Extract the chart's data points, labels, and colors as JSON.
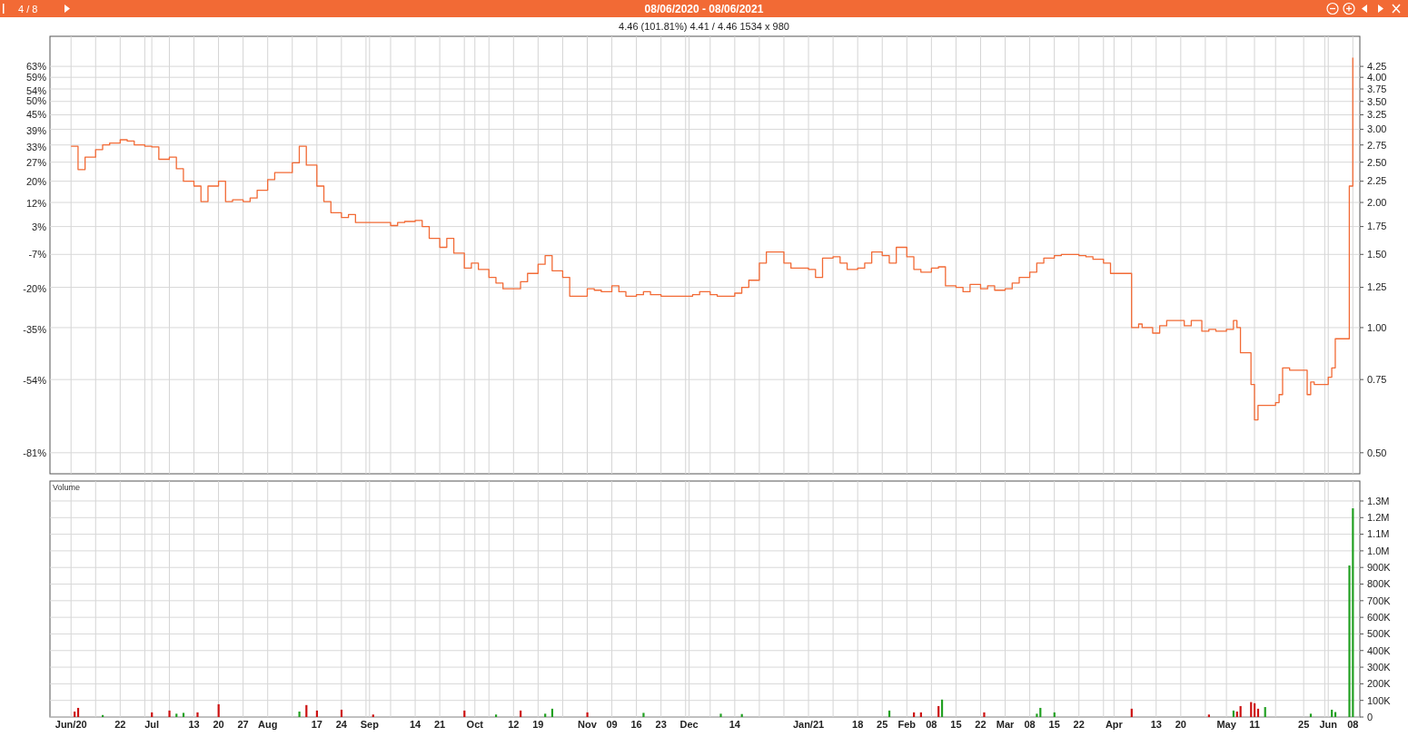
{
  "chart_data": [
    {
      "type": "step",
      "title": "08/06/2020 - 08/06/2021",
      "subtitle": "4.46 (101.81%) 4.41 / 4.46  1534 x 980",
      "annotations": [
        "4 / 8"
      ],
      "x": [
        "2020-06-08",
        "2020-06-10",
        "2020-06-12",
        "2020-06-15",
        "2020-06-17",
        "2020-06-19",
        "2020-06-22",
        "2020-06-24",
        "2020-06-26",
        "2020-06-29",
        "2020-07-01",
        "2020-07-03",
        "2020-07-06",
        "2020-07-08",
        "2020-07-10",
        "2020-07-13",
        "2020-07-15",
        "2020-07-17",
        "2020-07-20",
        "2020-07-22",
        "2020-07-24",
        "2020-07-27",
        "2020-07-29",
        "2020-07-31",
        "2020-08-03",
        "2020-08-05",
        "2020-08-07",
        "2020-08-10",
        "2020-08-12",
        "2020-08-14",
        "2020-08-17",
        "2020-08-19",
        "2020-08-21",
        "2020-08-24",
        "2020-08-26",
        "2020-08-28",
        "2020-09-01",
        "2020-09-03",
        "2020-09-07",
        "2020-09-09",
        "2020-09-11",
        "2020-09-14",
        "2020-09-16",
        "2020-09-18",
        "2020-09-21",
        "2020-09-23",
        "2020-09-25",
        "2020-09-28",
        "2020-09-30",
        "2020-10-02",
        "2020-10-05",
        "2020-10-07",
        "2020-10-09",
        "2020-10-12",
        "2020-10-14",
        "2020-10-16",
        "2020-10-19",
        "2020-10-21",
        "2020-10-23",
        "2020-10-26",
        "2020-10-28",
        "2020-10-30",
        "2020-11-02",
        "2020-11-04",
        "2020-11-06",
        "2020-11-09",
        "2020-11-11",
        "2020-11-13",
        "2020-11-16",
        "2020-11-18",
        "2020-11-20",
        "2020-11-23",
        "2020-11-25",
        "2020-11-27",
        "2020-11-30",
        "2020-12-02",
        "2020-12-04",
        "2020-12-07",
        "2020-12-09",
        "2020-12-11",
        "2020-12-14",
        "2020-12-16",
        "2020-12-18",
        "2020-12-21",
        "2020-12-23",
        "2020-12-28",
        "2020-12-30",
        "2021-01-04",
        "2021-01-06",
        "2021-01-08",
        "2021-01-11",
        "2021-01-13",
        "2021-01-15",
        "2021-01-18",
        "2021-01-20",
        "2021-01-22",
        "2021-01-25",
        "2021-01-27",
        "2021-01-29",
        "2021-02-01",
        "2021-02-03",
        "2021-02-05",
        "2021-02-08",
        "2021-02-10",
        "2021-02-12",
        "2021-02-15",
        "2021-02-17",
        "2021-02-19",
        "2021-02-22",
        "2021-02-24",
        "2021-02-26",
        "2021-03-01",
        "2021-03-03",
        "2021-03-05",
        "2021-03-08",
        "2021-03-10",
        "2021-03-12",
        "2021-03-15",
        "2021-03-17",
        "2021-03-19",
        "2021-03-22",
        "2021-03-24",
        "2021-03-26",
        "2021-03-29",
        "2021-03-31",
        "2021-04-06",
        "2021-04-08",
        "2021-04-09",
        "2021-04-12",
        "2021-04-14",
        "2021-04-16",
        "2021-04-19",
        "2021-04-21",
        "2021-04-23",
        "2021-04-26",
        "2021-04-28",
        "2021-04-30",
        "2021-05-03",
        "2021-05-05",
        "2021-05-06",
        "2021-05-07",
        "2021-05-10",
        "2021-05-11",
        "2021-05-12",
        "2021-05-14",
        "2021-05-17",
        "2021-05-18",
        "2021-05-19",
        "2021-05-21",
        "2021-05-25",
        "2021-05-26",
        "2021-05-27",
        "2021-05-28",
        "2021-06-01",
        "2021-06-02",
        "2021-06-03",
        "2021-06-07",
        "2021-06-08"
      ],
      "series": [
        {
          "color": "#f26a35",
          "values": [
            2.73,
            2.4,
            2.57,
            2.68,
            2.75,
            2.78,
            2.83,
            2.81,
            2.75,
            2.73,
            2.72,
            2.54,
            2.57,
            2.41,
            2.25,
            2.19,
            2.01,
            2.19,
            2.25,
            2.01,
            2.03,
            2.01,
            2.05,
            2.14,
            2.27,
            2.36,
            2.36,
            2.49,
            2.73,
            2.46,
            2.19,
            2.01,
            1.89,
            1.84,
            1.87,
            1.79,
            1.79,
            1.79,
            1.76,
            1.79,
            1.8,
            1.81,
            1.75,
            1.64,
            1.56,
            1.64,
            1.51,
            1.39,
            1.43,
            1.38,
            1.32,
            1.28,
            1.24,
            1.24,
            1.29,
            1.35,
            1.42,
            1.49,
            1.37,
            1.32,
            1.19,
            1.19,
            1.24,
            1.23,
            1.22,
            1.26,
            1.22,
            1.19,
            1.2,
            1.22,
            1.2,
            1.19,
            1.19,
            1.19,
            1.19,
            1.2,
            1.22,
            1.2,
            1.19,
            1.19,
            1.21,
            1.25,
            1.3,
            1.43,
            1.52,
            1.43,
            1.39,
            1.38,
            1.32,
            1.47,
            1.48,
            1.43,
            1.38,
            1.39,
            1.43,
            1.52,
            1.49,
            1.43,
            1.56,
            1.48,
            1.38,
            1.36,
            1.39,
            1.4,
            1.26,
            1.25,
            1.22,
            1.27,
            1.24,
            1.26,
            1.23,
            1.24,
            1.28,
            1.32,
            1.36,
            1.43,
            1.47,
            1.49,
            1.5,
            1.5,
            1.49,
            1.48,
            1.46,
            1.43,
            1.35,
            1.0,
            1.02,
            1.0,
            0.97,
            1.01,
            1.04,
            1.04,
            1.01,
            1.04,
            0.98,
            0.99,
            0.98,
            0.99,
            1.04,
            1.0,
            0.87,
            0.73,
            0.6,
            0.65,
            0.65,
            0.66,
            0.69,
            0.8,
            0.79,
            0.79,
            0.69,
            0.74,
            0.73,
            0.76,
            0.8,
            0.94,
            2.19,
            4.46
          ]
        }
      ],
      "xlim": [
        "2020-06-02",
        "2021-06-10"
      ],
      "xticks": [
        {
          "value": "2020-06-08",
          "label": null
        },
        {
          "value": "2020-06-15",
          "label": null
        },
        {
          "value": "2020-06-22",
          "label": null
        },
        {
          "value": "2020-06-29",
          "label": null
        },
        {
          "value": "2020-07-01",
          "label": null
        },
        {
          "value": "2020-07-06",
          "label": null
        },
        {
          "value": "2020-07-13",
          "label": null
        },
        {
          "value": "2020-07-20",
          "label": null
        },
        {
          "value": "2020-07-27",
          "label": null
        },
        {
          "value": "2020-08-03",
          "label": null
        },
        {
          "value": "2020-08-10",
          "label": null
        },
        {
          "value": "2020-08-17",
          "label": null
        },
        {
          "value": "2020-08-24",
          "label": null
        },
        {
          "value": "2020-08-31",
          "label": null
        },
        {
          "value": "2020-09-01",
          "label": null
        },
        {
          "value": "2020-09-07",
          "label": null
        },
        {
          "value": "2020-09-14",
          "label": null
        },
        {
          "value": "2020-09-21",
          "label": null
        },
        {
          "value": "2020-09-28",
          "label": null
        },
        {
          "value": "2020-10-01",
          "label": null
        },
        {
          "value": "2020-10-05",
          "label": null
        },
        {
          "value": "2020-10-12",
          "label": null
        },
        {
          "value": "2020-10-19",
          "label": null
        },
        {
          "value": "2020-10-26",
          "label": null
        },
        {
          "value": "2020-11-02",
          "label": null
        },
        {
          "value": "2020-11-09",
          "label": null
        },
        {
          "value": "2020-11-16",
          "label": null
        },
        {
          "value": "2020-11-23",
          "label": null
        },
        {
          "value": "2020-11-30",
          "label": null
        },
        {
          "value": "2020-12-01",
          "label": null
        },
        {
          "value": "2020-12-07",
          "label": null
        },
        {
          "value": "2020-12-14",
          "label": null
        },
        {
          "value": "2020-12-21",
          "label": null
        },
        {
          "value": "2020-12-28",
          "label": null
        },
        {
          "value": "2021-01-04",
          "label": null
        },
        {
          "value": "2021-01-11",
          "label": null
        },
        {
          "value": "2021-01-18",
          "label": null
        },
        {
          "value": "2021-01-25",
          "label": null
        },
        {
          "value": "2021-02-01",
          "label": null
        },
        {
          "value": "2021-02-08",
          "label": null
        },
        {
          "value": "2021-02-15",
          "label": null
        },
        {
          "value": "2021-02-22",
          "label": null
        },
        {
          "value": "2021-03-01",
          "label": null
        },
        {
          "value": "2021-03-08",
          "label": null
        },
        {
          "value": "2021-03-15",
          "label": null
        },
        {
          "value": "2021-03-22",
          "label": null
        },
        {
          "value": "2021-03-29",
          "label": null
        },
        {
          "value": "2021-04-01",
          "label": null
        },
        {
          "value": "2021-04-06",
          "label": null
        },
        {
          "value": "2021-04-13",
          "label": null
        },
        {
          "value": "2021-04-20",
          "label": null
        },
        {
          "value": "2021-04-27",
          "label": null
        },
        {
          "value": "2021-05-03",
          "label": null
        },
        {
          "value": "2021-05-11",
          "label": null
        },
        {
          "value": "2021-05-17",
          "label": null
        },
        {
          "value": "2021-05-25",
          "label": null
        },
        {
          "value": "2021-05-31",
          "label": null
        },
        {
          "value": "2021-06-01",
          "label": null
        },
        {
          "value": "2021-06-08",
          "label": null
        }
      ],
      "log": true,
      "ylim": [
        0.445,
        5.02
      ],
      "yticks": [
        {
          "value": 4.25,
          "label": "4.25"
        },
        {
          "value": 4,
          "label": "4.00"
        },
        {
          "value": 3.75,
          "label": "3.75"
        },
        {
          "value": 3.5,
          "label": "3.50"
        },
        {
          "value": 3.25,
          "label": "3.25"
        },
        {
          "value": 3,
          "label": "3.00"
        },
        {
          "value": 2.75,
          "label": "2.75"
        },
        {
          "value": 2.5,
          "label": "2.50"
        },
        {
          "value": 2.25,
          "label": "2.25"
        },
        {
          "value": 2,
          "label": "2.00"
        },
        {
          "value": 1.75,
          "label": "1.75"
        },
        {
          "value": 1.5,
          "label": "1.50"
        },
        {
          "value": 1.25,
          "label": "1.25"
        },
        {
          "value": 1,
          "label": "1.00"
        },
        {
          "value": 0.75,
          "label": "0.75"
        },
        {
          "value": 0.5,
          "label": "0.50"
        }
      ],
      "y2lim": [
        -88.8,
        74.2
      ],
      "y2ticks": [
        {
          "value": 63,
          "label": "63%"
        },
        {
          "value": 59,
          "label": "59%"
        },
        {
          "value": 54,
          "label": "54%"
        },
        {
          "value": 50,
          "label": "50%"
        },
        {
          "value": 45,
          "label": "45%"
        },
        {
          "value": 39,
          "label": "39%"
        },
        {
          "value": 33,
          "label": "33%"
        },
        {
          "value": 27,
          "label": "27%"
        },
        {
          "value": 20,
          "label": "20%"
        },
        {
          "value": 12,
          "label": "12%"
        },
        {
          "value": 3,
          "label": "3%"
        },
        {
          "value": -7,
          "label": "-7%"
        },
        {
          "value": -20,
          "label": "-20%"
        },
        {
          "value": -35,
          "label": "-35%"
        },
        {
          "value": -54,
          "label": "-54%"
        },
        {
          "value": -81,
          "label": "-81%"
        }
      ],
      "tick_labels": "y",
      "grid": true
    },
    {
      "type": "bar",
      "title": "Volume",
      "x": [
        "2020-06-09",
        "2020-06-10",
        "2020-06-17",
        "2020-07-01",
        "2020-07-06",
        "2020-07-08",
        "2020-07-10",
        "2020-07-14",
        "2020-07-20",
        "2020-08-12",
        "2020-08-14",
        "2020-08-17",
        "2020-08-24",
        "2020-09-02",
        "2020-09-28",
        "2020-10-07",
        "2020-10-14",
        "2020-10-21",
        "2020-10-23",
        "2020-11-02",
        "2020-11-18",
        "2020-12-10",
        "2020-12-16",
        "2021-01-27",
        "2021-02-03",
        "2021-02-05",
        "2021-02-10",
        "2021-02-11",
        "2021-02-23",
        "2021-03-10",
        "2021-03-11",
        "2021-03-15",
        "2021-04-06",
        "2021-04-28",
        "2021-05-05",
        "2021-05-06",
        "2021-05-07",
        "2021-05-10",
        "2021-05-11",
        "2021-05-12",
        "2021-05-14",
        "2021-05-27",
        "2021-06-02",
        "2021-06-03",
        "2021-06-07",
        "2021-06-08"
      ],
      "values": [
        33000,
        55000,
        12000,
        28000,
        39000,
        20000,
        25000,
        28000,
        77000,
        33000,
        72000,
        39000,
        44000,
        15000,
        39000,
        15000,
        39000,
        20000,
        50000,
        28000,
        25000,
        20000,
        18000,
        39000,
        28000,
        28000,
        66000,
        105000,
        28000,
        20000,
        55000,
        28000,
        50000,
        15000,
        39000,
        33000,
        66000,
        90000,
        83000,
        50000,
        60000,
        20000,
        44000,
        30000,
        912000,
        1256000
      ],
      "colors": [
        "#cc1111",
        "#cc1111",
        "#22a022",
        "#cc1111",
        "#cc1111",
        "#22a022",
        "#22a022",
        "#cc1111",
        "#cc1111",
        "#22a022",
        "#cc1111",
        "#cc1111",
        "#cc1111",
        "#cc1111",
        "#cc1111",
        "#22a022",
        "#cc1111",
        "#22a022",
        "#22a022",
        "#cc1111",
        "#22a022",
        "#22a022",
        "#22a022",
        "#22a022",
        "#cc1111",
        "#cc1111",
        "#cc1111",
        "#22a022",
        "#cc1111",
        "#22a022",
        "#22a022",
        "#22a022",
        "#cc1111",
        "#cc1111",
        "#22a022",
        "#cc1111",
        "#cc1111",
        "#cc1111",
        "#cc1111",
        "#cc1111",
        "#22a022",
        "#22a022",
        "#22a022",
        "#22a022",
        "#22a022",
        "#22a022"
      ],
      "xlim": [
        "2020-06-02",
        "2021-06-10"
      ],
      "xticks": [
        {
          "value": "2020-06-08",
          "label": "Jun/20"
        },
        {
          "value": "2020-06-15",
          "label": null
        },
        {
          "value": "2020-06-22",
          "label": "22"
        },
        {
          "value": "2020-06-29",
          "label": null
        },
        {
          "value": "2020-07-01",
          "label": "Jul"
        },
        {
          "value": "2020-07-06",
          "label": null
        },
        {
          "value": "2020-07-13",
          "label": "13"
        },
        {
          "value": "2020-07-20",
          "label": "20"
        },
        {
          "value": "2020-07-27",
          "label": "27"
        },
        {
          "value": "2020-08-03",
          "label": "Aug"
        },
        {
          "value": "2020-08-10",
          "label": null
        },
        {
          "value": "2020-08-17",
          "label": "17"
        },
        {
          "value": "2020-08-24",
          "label": "24"
        },
        {
          "value": "2020-08-31",
          "label": null
        },
        {
          "value": "2020-09-01",
          "label": "Sep"
        },
        {
          "value": "2020-09-07",
          "label": null
        },
        {
          "value": "2020-09-14",
          "label": "14"
        },
        {
          "value": "2020-09-21",
          "label": "21"
        },
        {
          "value": "2020-09-28",
          "label": null
        },
        {
          "value": "2020-10-01",
          "label": "Oct"
        },
        {
          "value": "2020-10-05",
          "label": null
        },
        {
          "value": "2020-10-12",
          "label": "12"
        },
        {
          "value": "2020-10-19",
          "label": "19"
        },
        {
          "value": "2020-10-26",
          "label": null
        },
        {
          "value": "2020-11-02",
          "label": "Nov"
        },
        {
          "value": "2020-11-09",
          "label": "09"
        },
        {
          "value": "2020-11-16",
          "label": "16"
        },
        {
          "value": "2020-11-23",
          "label": "23"
        },
        {
          "value": "2020-11-30",
          "label": null
        },
        {
          "value": "2020-12-01",
          "label": "Dec"
        },
        {
          "value": "2020-12-07",
          "label": null
        },
        {
          "value": "2020-12-14",
          "label": "14"
        },
        {
          "value": "2020-12-21",
          "label": null
        },
        {
          "value": "2020-12-28",
          "label": null
        },
        {
          "value": "2021-01-04",
          "label": "Jan/21"
        },
        {
          "value": "2021-01-11",
          "label": null
        },
        {
          "value": "2021-01-18",
          "label": "18"
        },
        {
          "value": "2021-01-25",
          "label": "25"
        },
        {
          "value": "2021-02-01",
          "label": "Feb"
        },
        {
          "value": "2021-02-08",
          "label": "08"
        },
        {
          "value": "2021-02-15",
          "label": "15"
        },
        {
          "value": "2021-02-22",
          "label": "22"
        },
        {
          "value": "2021-03-01",
          "label": "Mar"
        },
        {
          "value": "2021-03-08",
          "label": "08"
        },
        {
          "value": "2021-03-15",
          "label": "15"
        },
        {
          "value": "2021-03-22",
          "label": "22"
        },
        {
          "value": "2021-03-29",
          "label": null
        },
        {
          "value": "2021-04-01",
          "label": "Apr"
        },
        {
          "value": "2021-04-06",
          "label": null
        },
        {
          "value": "2021-04-13",
          "label": "13"
        },
        {
          "value": "2021-04-20",
          "label": "20"
        },
        {
          "value": "2021-04-27",
          "label": null
        },
        {
          "value": "2021-05-03",
          "label": "May"
        },
        {
          "value": "2021-05-11",
          "label": "11"
        },
        {
          "value": "2021-05-17",
          "label": null
        },
        {
          "value": "2021-05-25",
          "label": "25"
        },
        {
          "value": "2021-05-31",
          "label": null
        },
        {
          "value": "2021-06-01",
          "label": "Jun"
        },
        {
          "value": "2021-06-08",
          "label": "08"
        }
      ],
      "ylim": [
        0,
        1420000
      ],
      "yticks": [
        {
          "value": 0,
          "label": "0"
        },
        {
          "value": 100000,
          "label": "100K"
        },
        {
          "value": 200000,
          "label": "200K"
        },
        {
          "value": 300000,
          "label": "300K"
        },
        {
          "value": 400000,
          "label": "400K"
        },
        {
          "value": 500000,
          "label": "500K"
        },
        {
          "value": 600000,
          "label": "600K"
        },
        {
          "value": 700000,
          "label": "700K"
        },
        {
          "value": 800000,
          "label": "800K"
        },
        {
          "value": 900000,
          "label": "900K"
        },
        {
          "value": 1000000,
          "label": "1.0M"
        },
        {
          "value": 1100000,
          "label": "1.1M"
        },
        {
          "value": 1200000,
          "label": "1.2M"
        },
        {
          "value": 1300000,
          "label": "1.3M"
        }
      ],
      "grid": true
    }
  ]
}
